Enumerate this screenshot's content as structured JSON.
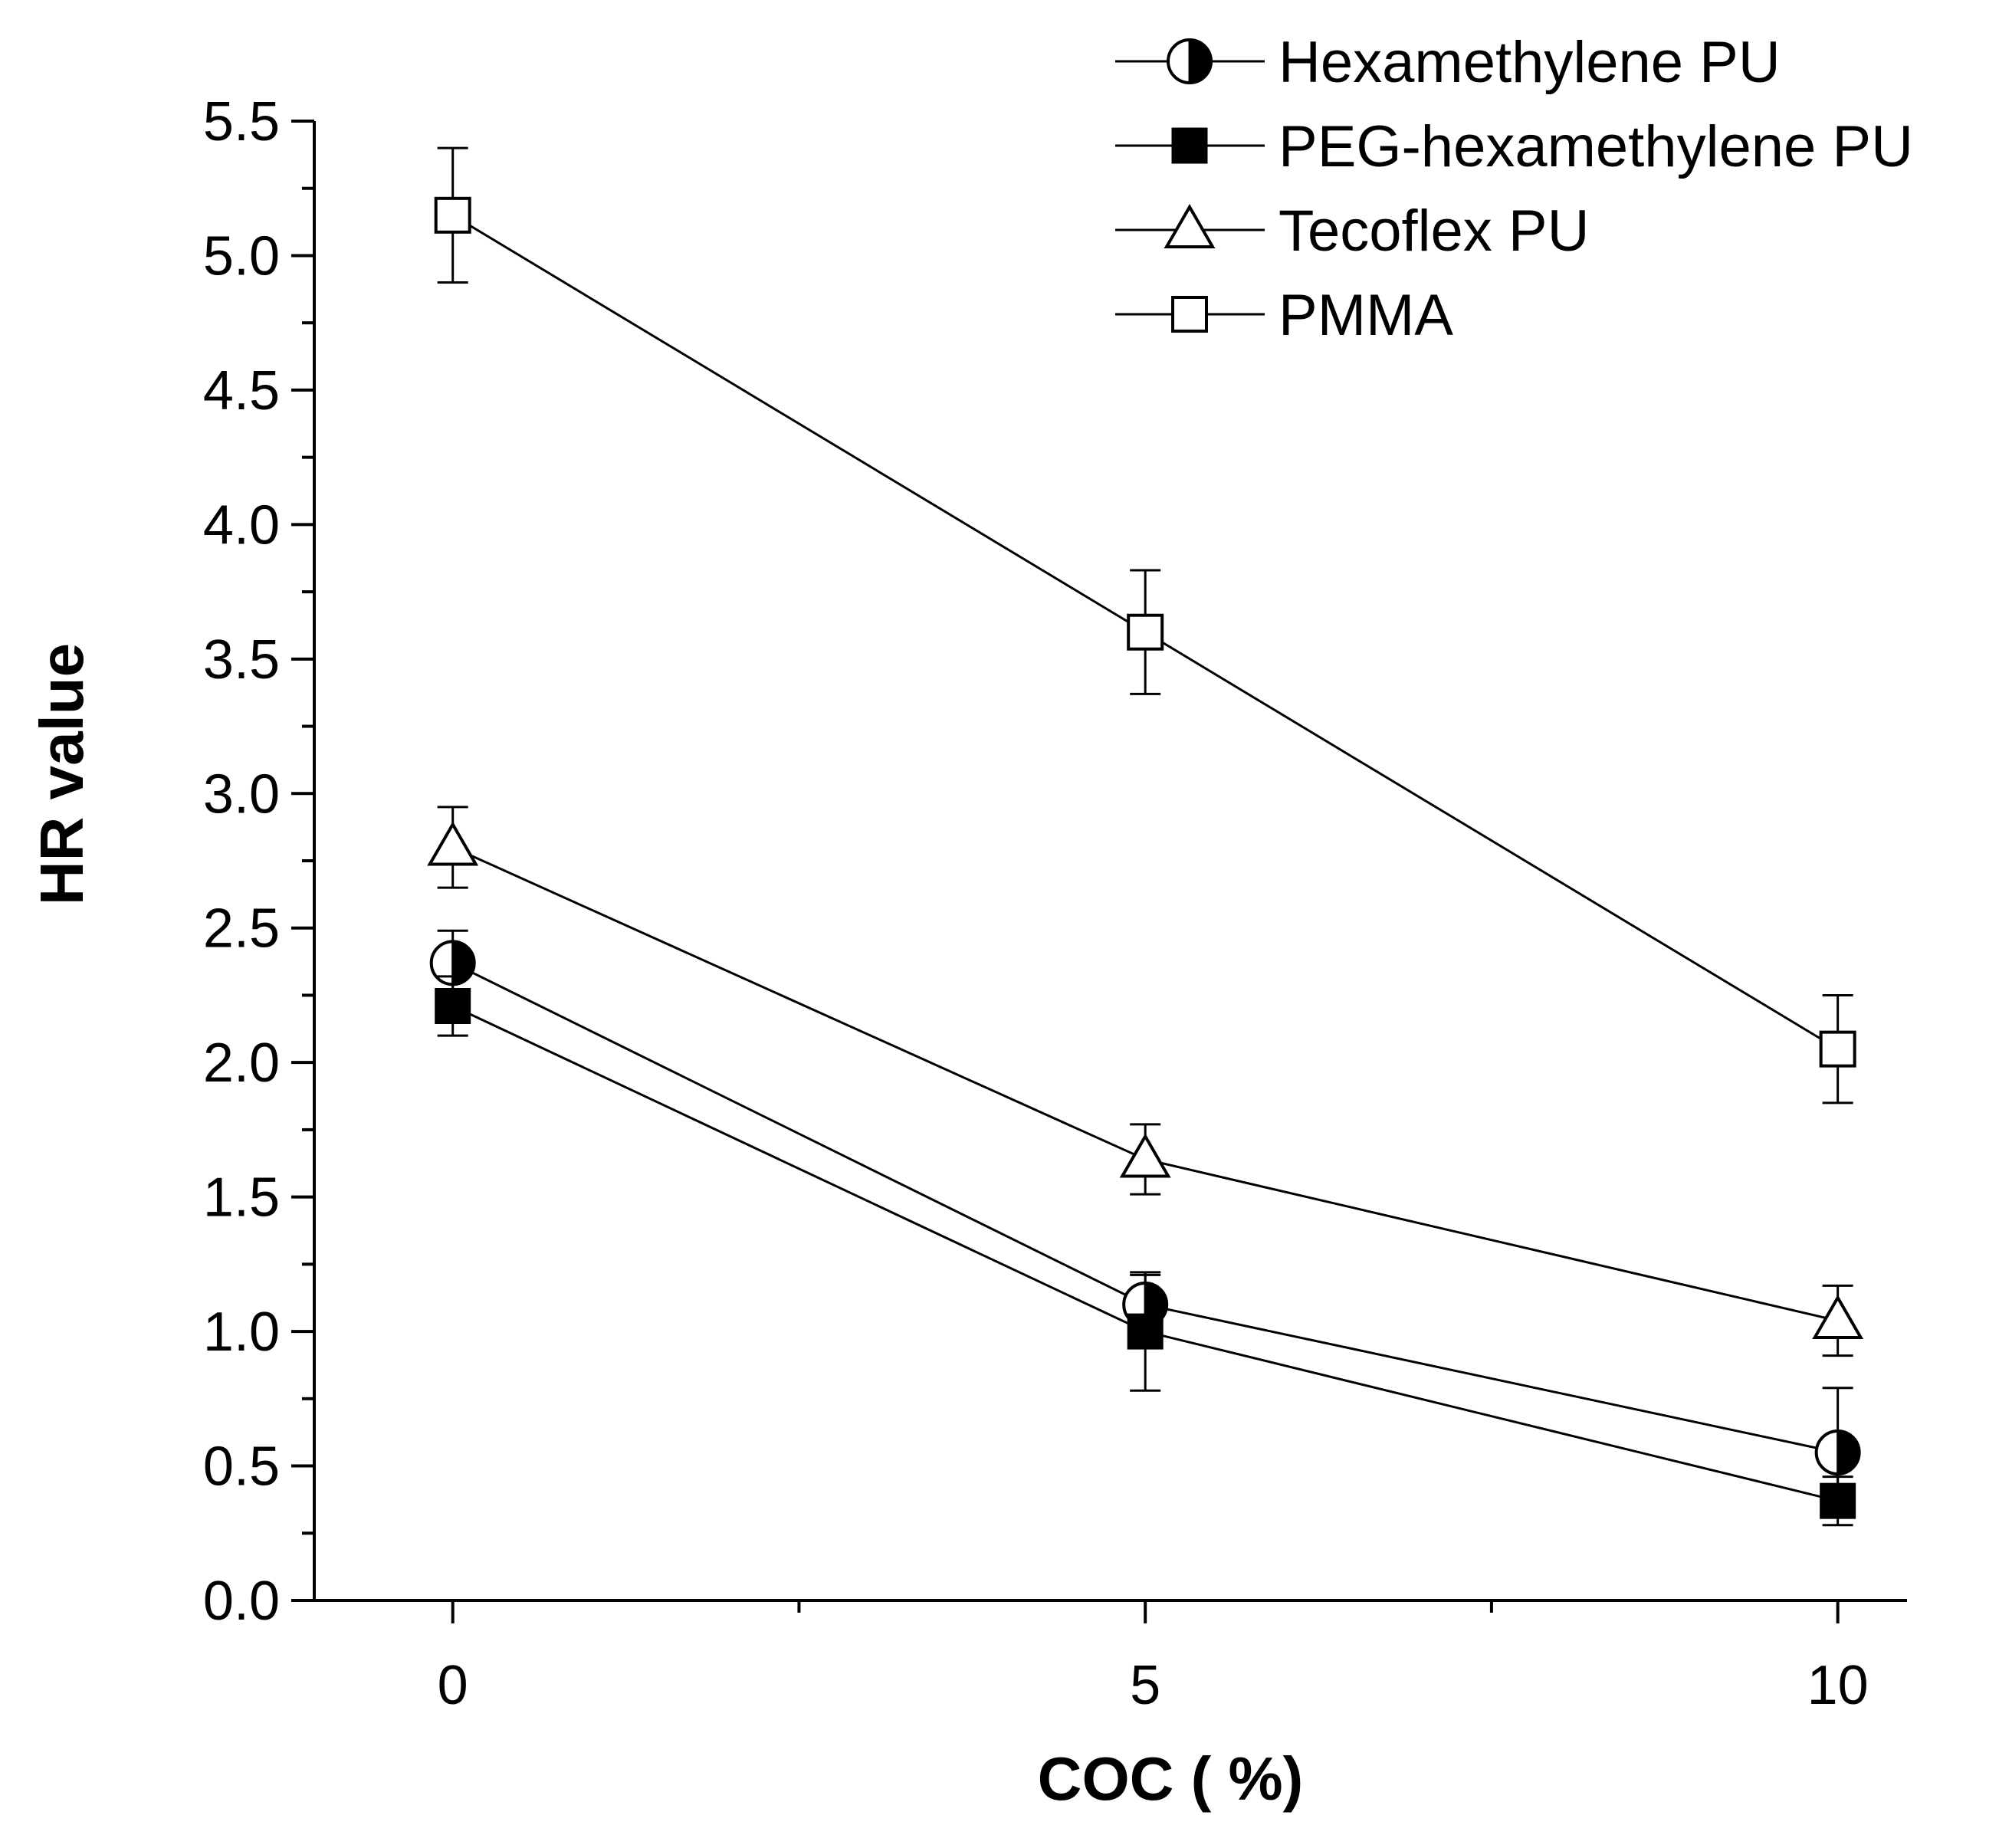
{
  "chart_data": {
    "type": "line",
    "title": "",
    "xlabel": "COC ( %)",
    "ylabel": "HR value",
    "x": [
      0,
      5,
      10
    ],
    "xlim": [
      -1,
      10.5
    ],
    "ylim": [
      0,
      5.5
    ],
    "xticks": [
      "0",
      "5",
      "10"
    ],
    "yticks": [
      "0.0",
      "0.5",
      "1.0",
      "1.5",
      "2.0",
      "2.5",
      "3.0",
      "3.5",
      "4.0",
      "4.5",
      "5.0",
      "5.5"
    ],
    "grid": false,
    "legend_position": "top-right",
    "series": [
      {
        "name": "Hexamethylene PU",
        "marker": "half-filled-circle",
        "values": [
          2.37,
          1.1,
          0.55
        ],
        "error": [
          0.12,
          0.11,
          0.24
        ]
      },
      {
        "name": "PEG-hexamethylene PU",
        "marker": "filled-square",
        "values": [
          2.21,
          1.0,
          0.37
        ],
        "error": [
          0.11,
          0.22,
          0.09
        ]
      },
      {
        "name": "Tecoflex PU",
        "marker": "open-triangle",
        "values": [
          2.8,
          1.64,
          1.04
        ],
        "error": [
          0.15,
          0.13,
          0.13
        ]
      },
      {
        "name": "PMMA",
        "marker": "open-square",
        "values": [
          5.15,
          3.6,
          2.05
        ],
        "error": [
          0.25,
          0.23,
          0.2
        ]
      }
    ]
  }
}
